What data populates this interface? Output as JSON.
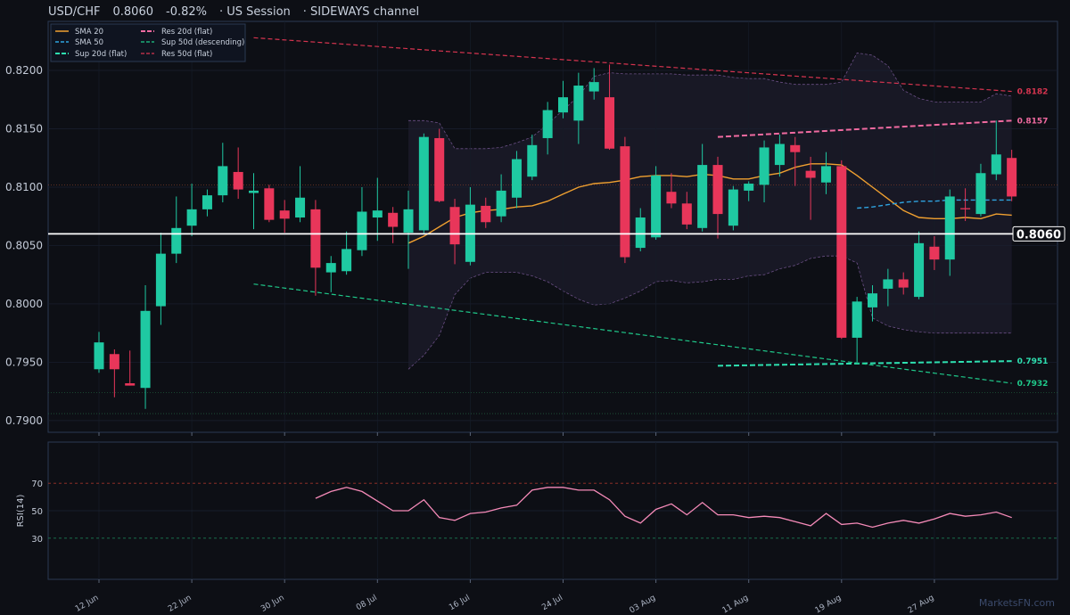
{
  "header": {
    "symbol": "USD/CHF",
    "price": "0.8060",
    "change": "-0.82%",
    "session": "· US Session",
    "regime": "· SIDEWAYS channel"
  },
  "watermark": "MarketsFN.com",
  "colors": {
    "background": "#0d0f15",
    "up": "#1fc9a2",
    "down": "#e8365a",
    "sma20": "#f0a030",
    "sma50": "#2fa3e0",
    "sup": "#2ee0b0",
    "res20": "#f06aa0",
    "res50": "#d6344f",
    "rsi": "#f58ab8"
  },
  "chart_data": [
    {
      "type": "candlestick",
      "title": "USD/CHF",
      "ylim": [
        0.789,
        0.8242
      ],
      "y_ticks": [
        "0.7900",
        "0.7950",
        "0.8000",
        "0.8050",
        "0.8100",
        "0.8150",
        "0.8200"
      ],
      "x_ticks": [
        {
          "i": 0,
          "label": "12 Jun"
        },
        {
          "i": 6,
          "label": "22 Jun"
        },
        {
          "i": 12,
          "label": "30 Jun"
        },
        {
          "i": 18,
          "label": "08 Jul"
        },
        {
          "i": 24,
          "label": "16 Jul"
        },
        {
          "i": 30,
          "label": "24 Jul"
        },
        {
          "i": 36,
          "label": "03 Aug"
        },
        {
          "i": 42,
          "label": "11 Aug"
        },
        {
          "i": 48,
          "label": "19 Aug"
        },
        {
          "i": 54,
          "label": "27 Aug"
        }
      ],
      "candles": [
        {
          "o": 0.7944,
          "h": 0.7976,
          "l": 0.7941,
          "c": 0.7967
        },
        {
          "o": 0.7957,
          "h": 0.7961,
          "l": 0.792,
          "c": 0.7944
        },
        {
          "o": 0.7932,
          "h": 0.796,
          "l": 0.793,
          "c": 0.793
        },
        {
          "o": 0.7928,
          "h": 0.8016,
          "l": 0.791,
          "c": 0.7994
        },
        {
          "o": 0.7998,
          "h": 0.8061,
          "l": 0.7982,
          "c": 0.8043
        },
        {
          "o": 0.8043,
          "h": 0.8092,
          "l": 0.8035,
          "c": 0.8065
        },
        {
          "o": 0.8067,
          "h": 0.8103,
          "l": 0.8058,
          "c": 0.8081
        },
        {
          "o": 0.8081,
          "h": 0.8098,
          "l": 0.8075,
          "c": 0.8093
        },
        {
          "o": 0.8093,
          "h": 0.8138,
          "l": 0.8087,
          "c": 0.8118
        },
        {
          "o": 0.8113,
          "h": 0.8134,
          "l": 0.809,
          "c": 0.8098
        },
        {
          "o": 0.8095,
          "h": 0.8112,
          "l": 0.8064,
          "c": 0.8097
        },
        {
          "o": 0.8099,
          "h": 0.8102,
          "l": 0.807,
          "c": 0.8072
        },
        {
          "o": 0.808,
          "h": 0.8089,
          "l": 0.8061,
          "c": 0.8073
        },
        {
          "o": 0.8074,
          "h": 0.8118,
          "l": 0.807,
          "c": 0.8091
        },
        {
          "o": 0.8081,
          "h": 0.8089,
          "l": 0.8007,
          "c": 0.8031
        },
        {
          "o": 0.8027,
          "h": 0.8041,
          "l": 0.801,
          "c": 0.8035
        },
        {
          "o": 0.8028,
          "h": 0.8062,
          "l": 0.8025,
          "c": 0.8047
        },
        {
          "o": 0.8046,
          "h": 0.81,
          "l": 0.8041,
          "c": 0.8079
        },
        {
          "o": 0.8074,
          "h": 0.8108,
          "l": 0.8054,
          "c": 0.808
        },
        {
          "o": 0.8078,
          "h": 0.8083,
          "l": 0.8052,
          "c": 0.8066
        },
        {
          "o": 0.8061,
          "h": 0.8097,
          "l": 0.803,
          "c": 0.8081
        },
        {
          "o": 0.8063,
          "h": 0.8146,
          "l": 0.806,
          "c": 0.8143
        },
        {
          "o": 0.8142,
          "h": 0.815,
          "l": 0.8087,
          "c": 0.8088
        },
        {
          "o": 0.8083,
          "h": 0.809,
          "l": 0.8034,
          "c": 0.8051
        },
        {
          "o": 0.8036,
          "h": 0.81,
          "l": 0.8033,
          "c": 0.8085
        },
        {
          "o": 0.8084,
          "h": 0.8091,
          "l": 0.8065,
          "c": 0.807
        },
        {
          "o": 0.8075,
          "h": 0.8111,
          "l": 0.807,
          "c": 0.8097
        },
        {
          "o": 0.8091,
          "h": 0.8131,
          "l": 0.8082,
          "c": 0.8124
        },
        {
          "o": 0.8109,
          "h": 0.8145,
          "l": 0.8106,
          "c": 0.8136
        },
        {
          "o": 0.8142,
          "h": 0.8173,
          "l": 0.8128,
          "c": 0.8166
        },
        {
          "o": 0.8164,
          "h": 0.8191,
          "l": 0.8159,
          "c": 0.8177
        },
        {
          "o": 0.8157,
          "h": 0.8198,
          "l": 0.8137,
          "c": 0.8187
        },
        {
          "o": 0.8182,
          "h": 0.8202,
          "l": 0.8175,
          "c": 0.819
        },
        {
          "o": 0.8177,
          "h": 0.8205,
          "l": 0.8132,
          "c": 0.8133
        },
        {
          "o": 0.8135,
          "h": 0.8143,
          "l": 0.8035,
          "c": 0.804
        },
        {
          "o": 0.8048,
          "h": 0.8082,
          "l": 0.8045,
          "c": 0.8074
        },
        {
          "o": 0.8057,
          "h": 0.8118,
          "l": 0.8055,
          "c": 0.811
        },
        {
          "o": 0.8096,
          "h": 0.8112,
          "l": 0.8082,
          "c": 0.8086
        },
        {
          "o": 0.8086,
          "h": 0.8096,
          "l": 0.8064,
          "c": 0.8068
        },
        {
          "o": 0.8065,
          "h": 0.8137,
          "l": 0.8062,
          "c": 0.8119
        },
        {
          "o": 0.8119,
          "h": 0.8126,
          "l": 0.8056,
          "c": 0.8077
        },
        {
          "o": 0.8067,
          "h": 0.8101,
          "l": 0.8063,
          "c": 0.8098
        },
        {
          "o": 0.8097,
          "h": 0.8105,
          "l": 0.8088,
          "c": 0.8103
        },
        {
          "o": 0.8102,
          "h": 0.814,
          "l": 0.8087,
          "c": 0.8134
        },
        {
          "o": 0.8119,
          "h": 0.8145,
          "l": 0.8109,
          "c": 0.8137
        },
        {
          "o": 0.8136,
          "h": 0.8143,
          "l": 0.8101,
          "c": 0.813
        },
        {
          "o": 0.8114,
          "h": 0.8126,
          "l": 0.8072,
          "c": 0.8108
        },
        {
          "o": 0.8104,
          "h": 0.813,
          "l": 0.8094,
          "c": 0.8118
        },
        {
          "o": 0.8118,
          "h": 0.8123,
          "l": 0.797,
          "c": 0.7971
        },
        {
          "o": 0.7971,
          "h": 0.8006,
          "l": 0.795,
          "c": 0.8002
        },
        {
          "o": 0.7997,
          "h": 0.8016,
          "l": 0.7985,
          "c": 0.8009
        },
        {
          "o": 0.8013,
          "h": 0.803,
          "l": 0.7998,
          "c": 0.8021
        },
        {
          "o": 0.8021,
          "h": 0.8027,
          "l": 0.8008,
          "c": 0.8014
        },
        {
          "o": 0.8006,
          "h": 0.8062,
          "l": 0.8004,
          "c": 0.8052
        },
        {
          "o": 0.8049,
          "h": 0.8058,
          "l": 0.8029,
          "c": 0.8038
        },
        {
          "o": 0.8038,
          "h": 0.8098,
          "l": 0.8024,
          "c": 0.8092
        },
        {
          "o": 0.8082,
          "h": 0.8099,
          "l": 0.8071,
          "c": 0.8081
        },
        {
          "o": 0.8077,
          "h": 0.812,
          "l": 0.8075,
          "c": 0.8112
        },
        {
          "o": 0.8111,
          "h": 0.8157,
          "l": 0.8106,
          "c": 0.8128
        },
        {
          "o": 0.8125,
          "h": 0.8132,
          "l": 0.8088,
          "c": 0.8092
        }
      ],
      "sma20": [
        [
          20,
          0.8052
        ],
        [
          21,
          0.8058
        ],
        [
          22,
          0.8066
        ],
        [
          23,
          0.8074
        ],
        [
          24,
          0.8078
        ],
        [
          25,
          0.808
        ],
        [
          26,
          0.8081
        ],
        [
          27,
          0.8083
        ],
        [
          28,
          0.8084
        ],
        [
          29,
          0.8088
        ],
        [
          30,
          0.8094
        ],
        [
          31,
          0.81
        ],
        [
          32,
          0.8103
        ],
        [
          33,
          0.8104
        ],
        [
          34,
          0.8106
        ],
        [
          35,
          0.8109
        ],
        [
          36,
          0.811
        ],
        [
          37,
          0.811
        ],
        [
          38,
          0.8109
        ],
        [
          39,
          0.8111
        ],
        [
          40,
          0.811
        ],
        [
          41,
          0.8107
        ],
        [
          42,
          0.8107
        ],
        [
          43,
          0.811
        ],
        [
          44,
          0.8112
        ],
        [
          45,
          0.8117
        ],
        [
          46,
          0.812
        ],
        [
          47,
          0.812
        ],
        [
          48,
          0.8119
        ],
        [
          49,
          0.811
        ],
        [
          50,
          0.81
        ],
        [
          51,
          0.809
        ],
        [
          52,
          0.808
        ],
        [
          53,
          0.8074
        ],
        [
          54,
          0.8073
        ],
        [
          55,
          0.8073
        ],
        [
          56,
          0.8074
        ],
        [
          57,
          0.8073
        ],
        [
          58,
          0.8077
        ],
        [
          59,
          0.8076
        ]
      ],
      "sma50": [
        [
          49,
          0.8082
        ],
        [
          50,
          0.8083
        ],
        [
          51,
          0.8085
        ],
        [
          52,
          0.8087
        ],
        [
          53,
          0.8088
        ],
        [
          54,
          0.8088
        ],
        [
          55,
          0.8089
        ],
        [
          56,
          0.8089
        ],
        [
          57,
          0.8089
        ],
        [
          58,
          0.8089
        ],
        [
          59,
          0.8089
        ]
      ],
      "bb_upper": [
        [
          20,
          0.8157
        ],
        [
          21,
          0.8157
        ],
        [
          22,
          0.8155
        ],
        [
          23,
          0.8133
        ],
        [
          24,
          0.8133
        ],
        [
          25,
          0.8133
        ],
        [
          26,
          0.8134
        ],
        [
          27,
          0.8138
        ],
        [
          28,
          0.8143
        ],
        [
          29,
          0.8154
        ],
        [
          30,
          0.8166
        ],
        [
          31,
          0.8178
        ],
        [
          32,
          0.8195
        ],
        [
          33,
          0.8198
        ],
        [
          34,
          0.8197
        ],
        [
          35,
          0.8197
        ],
        [
          36,
          0.8197
        ],
        [
          37,
          0.8197
        ],
        [
          38,
          0.8196
        ],
        [
          39,
          0.8196
        ],
        [
          40,
          0.8196
        ],
        [
          41,
          0.8194
        ],
        [
          42,
          0.8193
        ],
        [
          43,
          0.8193
        ],
        [
          44,
          0.819
        ],
        [
          45,
          0.8188
        ],
        [
          46,
          0.8188
        ],
        [
          47,
          0.8188
        ],
        [
          48,
          0.819
        ],
        [
          49,
          0.8215
        ],
        [
          50,
          0.8213
        ],
        [
          51,
          0.8204
        ],
        [
          52,
          0.8183
        ],
        [
          53,
          0.8176
        ],
        [
          54,
          0.8173
        ],
        [
          55,
          0.8173
        ],
        [
          56,
          0.8173
        ],
        [
          57,
          0.8173
        ],
        [
          58,
          0.818
        ],
        [
          59,
          0.8178
        ]
      ],
      "bb_lower": [
        [
          20,
          0.7944
        ],
        [
          21,
          0.7956
        ],
        [
          22,
          0.7973
        ],
        [
          23,
          0.8008
        ],
        [
          24,
          0.8022
        ],
        [
          25,
          0.8027
        ],
        [
          26,
          0.8027
        ],
        [
          27,
          0.8027
        ],
        [
          28,
          0.8024
        ],
        [
          29,
          0.8019
        ],
        [
          30,
          0.8011
        ],
        [
          31,
          0.8004
        ],
        [
          32,
          0.7999
        ],
        [
          33,
          0.8
        ],
        [
          34,
          0.8005
        ],
        [
          35,
          0.8011
        ],
        [
          36,
          0.8019
        ],
        [
          37,
          0.802
        ],
        [
          38,
          0.8018
        ],
        [
          39,
          0.8019
        ],
        [
          40,
          0.8021
        ],
        [
          41,
          0.8021
        ],
        [
          42,
          0.8024
        ],
        [
          43,
          0.8025
        ],
        [
          44,
          0.803
        ],
        [
          45,
          0.8033
        ],
        [
          46,
          0.8039
        ],
        [
          47,
          0.8041
        ],
        [
          48,
          0.8041
        ],
        [
          49,
          0.8035
        ],
        [
          50,
          0.7988
        ],
        [
          51,
          0.7981
        ],
        [
          52,
          0.7978
        ],
        [
          53,
          0.7976
        ],
        [
          54,
          0.7975
        ],
        [
          55,
          0.7975
        ],
        [
          56,
          0.7975
        ],
        [
          57,
          0.7975
        ],
        [
          58,
          0.7975
        ],
        [
          59,
          0.7975
        ]
      ],
      "levels": [
        {
          "name": "Sup 20d (flat)",
          "color": "#2ee0b0",
          "from": [
            40,
            0.7947
          ],
          "to": [
            59,
            0.7951
          ],
          "label": "0.7951",
          "dash": "6,3",
          "width": 2
        },
        {
          "name": "Sup 50d (descending)",
          "color": "#1fc98a",
          "from": [
            10,
            0.8017
          ],
          "to": [
            59,
            0.7932
          ],
          "label": "0.7932",
          "dash": "5,3",
          "width": 1.2
        },
        {
          "name": "Res 20d (flat)",
          "color": "#f06aa0",
          "from": [
            40,
            0.8143
          ],
          "to": [
            59,
            0.8157
          ],
          "label": "0.8157",
          "dash": "6,3",
          "width": 2
        },
        {
          "name": "Res 50d (flat)",
          "color": "#d6344f",
          "from": [
            10,
            0.8228
          ],
          "to": [
            59,
            0.8182
          ],
          "label": "0.8182",
          "dash": "5,3",
          "width": 1.2
        }
      ],
      "current_price": 0.806,
      "current_label": "0.8060",
      "dotted_levels": [
        0.8102,
        0.7924,
        0.7906
      ],
      "legend": [
        "SMA 20",
        "SMA 50",
        "Sup 20d (flat)",
        "Res 20d (flat)",
        "Sup 50d (descending)",
        "Res 50d (flat)"
      ]
    },
    {
      "type": "line",
      "ylabel": "RSI(14)",
      "ylim": [
        0,
        100
      ],
      "y_ticks": [
        "30",
        "50",
        "70"
      ],
      "rsi": [
        [
          14,
          59
        ],
        [
          15,
          64
        ],
        [
          16,
          67
        ],
        [
          17,
          64
        ],
        [
          18,
          57
        ],
        [
          19,
          50
        ],
        [
          20,
          50
        ],
        [
          21,
          58
        ],
        [
          22,
          45
        ],
        [
          23,
          43
        ],
        [
          24,
          48
        ],
        [
          25,
          49
        ],
        [
          26,
          52
        ],
        [
          27,
          54
        ],
        [
          28,
          65
        ],
        [
          29,
          67
        ],
        [
          30,
          67
        ],
        [
          31,
          65
        ],
        [
          32,
          65
        ],
        [
          33,
          58
        ],
        [
          34,
          46
        ],
        [
          35,
          41
        ],
        [
          36,
          51
        ],
        [
          37,
          55
        ],
        [
          38,
          47
        ],
        [
          39,
          56
        ],
        [
          40,
          47
        ],
        [
          41,
          47
        ],
        [
          42,
          45
        ],
        [
          43,
          46
        ],
        [
          44,
          45
        ],
        [
          45,
          42
        ],
        [
          46,
          39
        ],
        [
          47,
          48
        ],
        [
          48,
          40
        ],
        [
          49,
          41
        ],
        [
          50,
          38
        ],
        [
          51,
          41
        ],
        [
          52,
          43
        ],
        [
          53,
          41
        ],
        [
          54,
          44
        ],
        [
          55,
          48
        ],
        [
          56,
          46
        ],
        [
          57,
          47
        ],
        [
          58,
          49
        ],
        [
          59,
          45
        ]
      ]
    }
  ]
}
